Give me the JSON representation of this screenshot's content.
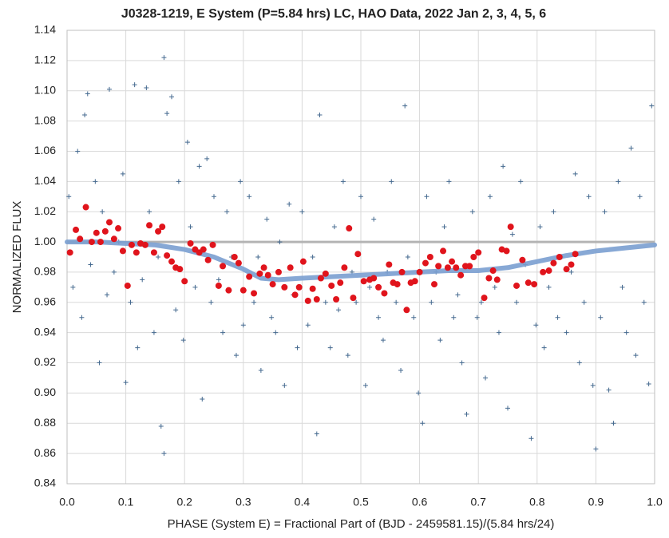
{
  "chart_data": {
    "type": "scatter",
    "title": "J0328-1219, E System (P=5.84 hrs) LC, HAO Data, 2022 Jan 2, 3, 4, 5, 6",
    "xlabel": "PHASE (System E) = Fractional Part of (BJD - 2459581.15)/(5.84 hrs/24)",
    "ylabel": "NORMALIZED FLUX",
    "xlim": [
      0,
      1
    ],
    "ylim": [
      0.84,
      1.14
    ],
    "xticks": [
      {
        "value": 0,
        "label": "0.0"
      },
      {
        "value": 0.1,
        "label": "0.1"
      },
      {
        "value": 0.2,
        "label": "0.2"
      },
      {
        "value": 0.3,
        "label": "0.3"
      },
      {
        "value": 0.4,
        "label": "0.4"
      },
      {
        "value": 0.5,
        "label": "0.5"
      },
      {
        "value": 0.6,
        "label": "0.6"
      },
      {
        "value": 0.7,
        "label": "0.7"
      },
      {
        "value": 0.8,
        "label": "0.8"
      },
      {
        "value": 0.9,
        "label": "0.9"
      },
      {
        "value": 1,
        "label": "1.0"
      }
    ],
    "yticks": [
      {
        "value": 0.84,
        "label": "0.84"
      },
      {
        "value": 0.86,
        "label": "0.86"
      },
      {
        "value": 0.88,
        "label": "0.88"
      },
      {
        "value": 0.9,
        "label": "0.90"
      },
      {
        "value": 0.92,
        "label": "0.92"
      },
      {
        "value": 0.94,
        "label": "0.94"
      },
      {
        "value": 0.96,
        "label": "0.96"
      },
      {
        "value": 0.98,
        "label": "0.98"
      },
      {
        "value": 1,
        "label": "1.00"
      },
      {
        "value": 1.02,
        "label": "1.02"
      },
      {
        "value": 1.04,
        "label": "1.04"
      },
      {
        "value": 1.06,
        "label": "1.06"
      },
      {
        "value": 1.08,
        "label": "1.08"
      },
      {
        "value": 1.1,
        "label": "1.10"
      },
      {
        "value": 1.12,
        "label": "1.12"
      },
      {
        "value": 1.14,
        "label": "1.14"
      }
    ],
    "grid": true,
    "reference_y": 1,
    "reference_color": "#b4b4b4",
    "series": [
      {
        "marker": "plus",
        "color": "#44698f",
        "x": [
          0.003,
          0.01,
          0.018,
          0.025,
          0.03,
          0.035,
          0.04,
          0.048,
          0.055,
          0.06,
          0.068,
          0.072,
          0.08,
          0.088,
          0.095,
          0.1,
          0.108,
          0.115,
          0.12,
          0.128,
          0.135,
          0.14,
          0.148,
          0.155,
          0.16,
          0.165,
          0.165,
          0.17,
          0.178,
          0.185,
          0.19,
          0.198,
          0.205,
          0.21,
          0.218,
          0.225,
          0.23,
          0.238,
          0.245,
          0.25,
          0.258,
          0.265,
          0.272,
          0.28,
          0.288,
          0.295,
          0.3,
          0.31,
          0.318,
          0.325,
          0.33,
          0.34,
          0.348,
          0.355,
          0.362,
          0.37,
          0.378,
          0.385,
          0.392,
          0.4,
          0.41,
          0.418,
          0.425,
          0.43,
          0.44,
          0.448,
          0.455,
          0.462,
          0.47,
          0.478,
          0.485,
          0.492,
          0.5,
          0.508,
          0.515,
          0.522,
          0.53,
          0.538,
          0.545,
          0.552,
          0.56,
          0.568,
          0.575,
          0.58,
          0.59,
          0.598,
          0.605,
          0.612,
          0.62,
          0.628,
          0.635,
          0.642,
          0.65,
          0.658,
          0.665,
          0.672,
          0.68,
          0.69,
          0.698,
          0.705,
          0.712,
          0.72,
          0.728,
          0.735,
          0.742,
          0.75,
          0.758,
          0.765,
          0.772,
          0.78,
          0.79,
          0.798,
          0.805,
          0.812,
          0.82,
          0.828,
          0.835,
          0.842,
          0.85,
          0.858,
          0.865,
          0.872,
          0.88,
          0.888,
          0.895,
          0.9,
          0.908,
          0.915,
          0.922,
          0.93,
          0.938,
          0.945,
          0.952,
          0.96,
          0.968,
          0.975,
          0.982,
          0.99,
          0.995
        ],
        "y": [
          1.03,
          0.97,
          1.06,
          0.95,
          1.084,
          1.098,
          0.985,
          1.04,
          0.92,
          1.02,
          0.965,
          1.101,
          0.98,
          1.0,
          1.045,
          0.907,
          0.96,
          1.104,
          0.93,
          0.975,
          1.102,
          1.02,
          0.94,
          0.99,
          0.878,
          1.122,
          0.86,
          1.085,
          1.096,
          0.955,
          1.04,
          0.935,
          1.066,
          1.01,
          0.97,
          1.05,
          0.896,
          1.055,
          0.96,
          1.03,
          0.975,
          0.94,
          1.02,
          0.99,
          0.925,
          1.04,
          0.945,
          1.03,
          0.96,
          0.99,
          0.915,
          1.015,
          0.95,
          0.94,
          1.0,
          0.905,
          1.025,
          0.965,
          0.93,
          1.02,
          0.945,
          0.99,
          0.873,
          1.084,
          0.96,
          0.93,
          1.01,
          0.955,
          1.04,
          0.925,
          0.98,
          0.96,
          1.03,
          0.905,
          0.97,
          1.015,
          0.95,
          0.935,
          0.98,
          1.04,
          0.96,
          0.915,
          1.09,
          0.99,
          0.95,
          0.9,
          0.88,
          1.03,
          0.96,
          0.98,
          0.935,
          1.01,
          1.04,
          0.95,
          0.965,
          0.92,
          0.886,
          1.02,
          0.95,
          0.96,
          0.91,
          1.03,
          0.97,
          0.94,
          1.05,
          0.89,
          1.005,
          0.96,
          1.04,
          0.985,
          0.87,
          0.945,
          1.01,
          0.93,
          0.97,
          1.02,
          0.95,
          0.99,
          0.94,
          0.98,
          1.045,
          0.92,
          0.96,
          1.03,
          0.905,
          0.863,
          0.95,
          1.02,
          0.902,
          0.88,
          1.04,
          0.97,
          0.94,
          1.062,
          0.925,
          1.03,
          0.96,
          0.906,
          1.09
        ]
      },
      {
        "marker": "dot",
        "color": "#e0141c",
        "x": [
          0.005,
          0.015,
          0.022,
          0.032,
          0.042,
          0.05,
          0.057,
          0.065,
          0.072,
          0.08,
          0.087,
          0.095,
          0.103,
          0.11,
          0.118,
          0.125,
          0.133,
          0.14,
          0.148,
          0.155,
          0.162,
          0.17,
          0.178,
          0.185,
          0.192,
          0.2,
          0.21,
          0.218,
          0.225,
          0.232,
          0.24,
          0.248,
          0.258,
          0.265,
          0.275,
          0.285,
          0.292,
          0.3,
          0.31,
          0.318,
          0.328,
          0.335,
          0.342,
          0.35,
          0.36,
          0.37,
          0.38,
          0.388,
          0.395,
          0.402,
          0.41,
          0.418,
          0.425,
          0.432,
          0.44,
          0.45,
          0.458,
          0.465,
          0.472,
          0.48,
          0.487,
          0.495,
          0.505,
          0.515,
          0.522,
          0.53,
          0.54,
          0.548,
          0.555,
          0.562,
          0.57,
          0.578,
          0.585,
          0.592,
          0.6,
          0.61,
          0.618,
          0.625,
          0.632,
          0.64,
          0.648,
          0.655,
          0.662,
          0.67,
          0.678,
          0.685,
          0.692,
          0.7,
          0.71,
          0.718,
          0.725,
          0.732,
          0.74,
          0.748,
          0.755,
          0.765,
          0.775,
          0.785,
          0.795,
          0.81,
          0.82,
          0.828,
          0.838,
          0.85,
          0.858,
          0.865
        ],
        "y": [
          0.993,
          1.008,
          1.002,
          1.023,
          1.0,
          1.006,
          1.0,
          1.007,
          1.013,
          1.002,
          1.009,
          0.994,
          0.971,
          0.998,
          0.993,
          0.999,
          0.998,
          1.011,
          0.993,
          1.007,
          1.01,
          0.991,
          0.987,
          0.983,
          0.982,
          0.974,
          0.999,
          0.995,
          0.993,
          0.995,
          0.988,
          0.998,
          0.971,
          0.984,
          0.968,
          0.99,
          0.986,
          0.968,
          0.977,
          0.966,
          0.979,
          0.983,
          0.978,
          0.972,
          0.98,
          0.97,
          0.983,
          0.965,
          0.97,
          0.987,
          0.961,
          0.969,
          0.962,
          0.976,
          0.979,
          0.971,
          0.962,
          0.973,
          0.983,
          1.009,
          0.963,
          0.992,
          0.974,
          0.975,
          0.976,
          0.97,
          0.966,
          0.985,
          0.973,
          0.972,
          0.98,
          0.955,
          0.973,
          0.974,
          0.98,
          0.986,
          0.99,
          0.972,
          0.984,
          0.994,
          0.983,
          0.987,
          0.983,
          0.978,
          0.984,
          0.984,
          0.99,
          0.993,
          0.963,
          0.976,
          0.981,
          0.975,
          0.995,
          0.994,
          1.01,
          0.971,
          0.988,
          0.973,
          0.972,
          0.98,
          0.981,
          0.986,
          0.99,
          0.982,
          0.985,
          0.992
        ]
      },
      {
        "marker": "line",
        "color": "#7a9fd0",
        "x": [
          0,
          0.05,
          0.1,
          0.15,
          0.2,
          0.25,
          0.3,
          0.33,
          0.36,
          0.4,
          0.45,
          0.5,
          0.55,
          0.6,
          0.65,
          0.7,
          0.75,
          0.8,
          0.85,
          0.9,
          0.95,
          1
        ],
        "y": [
          1.0,
          1.0,
          0.999,
          0.998,
          0.995,
          0.99,
          0.982,
          0.976,
          0.975,
          0.976,
          0.977,
          0.978,
          0.979,
          0.98,
          0.981,
          0.981,
          0.983,
          0.987,
          0.991,
          0.994,
          0.996,
          0.998
        ]
      }
    ]
  }
}
